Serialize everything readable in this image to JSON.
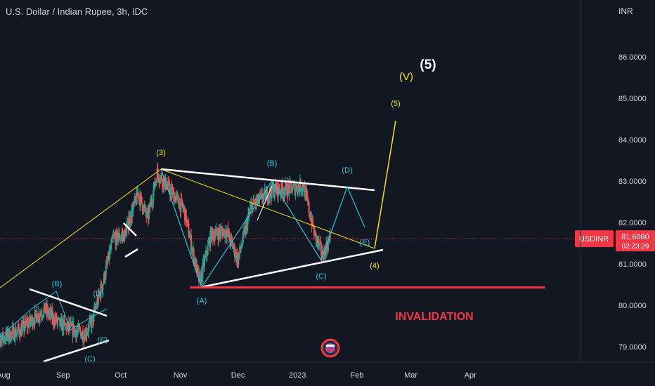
{
  "header": {
    "title": "U.S. Dollar / Indian Rupee, 3h, IDC",
    "currency": "INR"
  },
  "price_tag": {
    "symbol": "USDINR",
    "price": "81.6080",
    "countdown": "02:23:29"
  },
  "colors": {
    "background": "#131722",
    "candle_up": "#26a69a",
    "candle_down": "#ef5350",
    "trendline": "#ffffff",
    "wave_line": "#26c6da",
    "macro_line": "#f7e21a",
    "invalidation": "#f23645",
    "text": "#d1d4dc"
  },
  "chart_data": {
    "type": "candlestick",
    "title": "U.S. Dollar / Indian Rupee, 3h, IDC",
    "x_ticks": [
      "Aug",
      "Sep",
      "Oct",
      "Nov",
      "Dec",
      "2023",
      "Feb",
      "Mar",
      "Apr"
    ],
    "y_ticks": [
      "79.0000",
      "80.0000",
      "81.0000",
      "82.0000",
      "83.0000",
      "84.0000",
      "85.0000",
      "86.0000"
    ],
    "ylim": [
      78.6,
      87.0
    ],
    "last_price": 81.608,
    "invalidation_level": 80.43,
    "annotation_text": "INVALIDATION",
    "wave_points": [
      {
        "label": "(A)",
        "color": "#26c6da",
        "date": "2022-11-11",
        "price": 80.45
      },
      {
        "label": "(B)",
        "color": "#26c6da",
        "date": "2022-12-17",
        "price": 83.05
      },
      {
        "label": "(C)",
        "color": "#26c6da",
        "date": "2023-01-13",
        "price": 81.05
      },
      {
        "label": "(D)",
        "color": "#26c6da",
        "date": "2023-01-26",
        "price": 82.85
      },
      {
        "label": "(E)",
        "color": "#26c6da",
        "date": "2023-02-06",
        "price": 81.3
      },
      {
        "label": "(B)",
        "color": "#26c6da",
        "date": "2022-08-26",
        "price": 80.2
      },
      {
        "label": "(D)",
        "color": "#26c6da",
        "date": "2022-09-16",
        "price": 79.9
      },
      {
        "label": "(E)",
        "color": "#26c6da",
        "date": "2022-09-17",
        "price": 79.05
      },
      {
        "label": "(C)",
        "color": "#26c6da",
        "date": "2022-09-13",
        "price": 78.6
      },
      {
        "label": "(3)",
        "color": "#f7e21a",
        "date": "2022-10-20",
        "price": 83.3
      },
      {
        "label": "(4)",
        "color": "#f7e21a",
        "date": "2023-02-08",
        "price": 81.3
      },
      {
        "label": "(5)",
        "color": "#f7e21a",
        "date": "2023-02-17",
        "price": 84.6
      },
      {
        "label": "(V)",
        "color": "#f7e21a",
        "date": "2023-02-19",
        "price": 85.8
      },
      {
        "label": "(5)",
        "color": "#ffffff",
        "date": "2023-02-24",
        "price": 86.2
      }
    ],
    "grid": false,
    "legend": "none"
  }
}
